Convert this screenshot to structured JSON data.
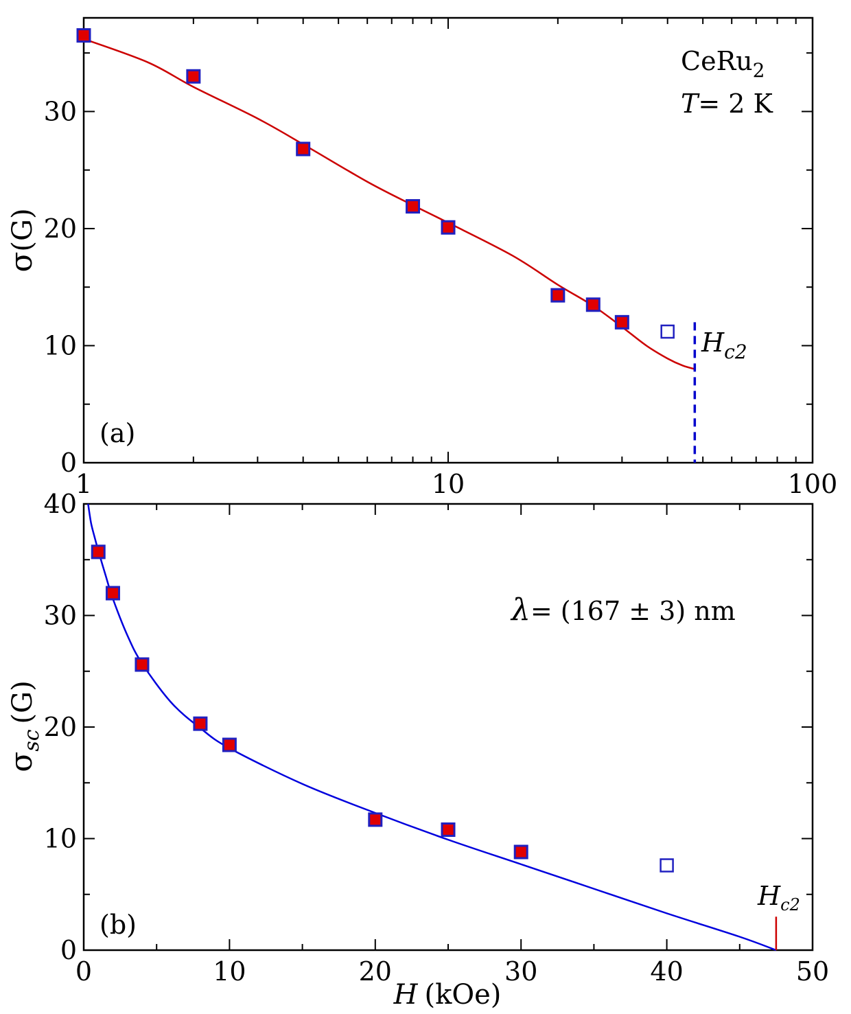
{
  "chart_data": [
    {
      "type": "scatter",
      "panel_label": "(a)",
      "xscale": "log",
      "xlim": [
        1,
        100
      ],
      "ylim": [
        0,
        38
      ],
      "ylabel_symbol": "σ",
      "ylabel_unit": "(G)",
      "x_ticks": [
        1,
        10,
        100
      ],
      "x_tick_labels": [
        "1",
        "10",
        "100"
      ],
      "y_ticks": [
        0,
        10,
        20,
        30
      ],
      "y_tick_labels": [
        "0",
        "10",
        "20",
        "30"
      ],
      "title_compound": "CeRu",
      "title_subscript": "2",
      "temperature_symbol": "T",
      "temperature_text": "= 2 K",
      "hc2_symbol": "H",
      "hc2_subscript": "c2",
      "hc2_x": 47.5,
      "hc2_line_color": "#0000cc",
      "series": [
        {
          "kind": "filled",
          "x": [
            1,
            2,
            4,
            8,
            10,
            20,
            25,
            30
          ],
          "y": [
            36.5,
            33.0,
            26.8,
            21.9,
            20.1,
            14.3,
            13.5,
            12.0
          ],
          "fill": "#e00000",
          "stroke": "#2020c0"
        },
        {
          "kind": "open",
          "x": [
            40
          ],
          "y": [
            11.2
          ],
          "stroke": "#2020c0"
        }
      ],
      "fit_curve": {
        "color": "#cc0000",
        "x": [
          1,
          1.5,
          2,
          3,
          4,
          6,
          8,
          10,
          15,
          20,
          25,
          30,
          35,
          40,
          44,
          47.5
        ],
        "y": [
          36.2,
          34.2,
          32.1,
          29.4,
          27.2,
          24.0,
          22.0,
          20.5,
          17.7,
          15.2,
          13.4,
          11.6,
          10.0,
          8.9,
          8.3,
          8.0
        ]
      }
    },
    {
      "type": "scatter",
      "panel_label": "(b)",
      "xlim": [
        0,
        50
      ],
      "ylim": [
        0,
        40
      ],
      "xlabel_symbol": "H",
      "xlabel_unit": "(kOe)",
      "ylabel_symbol": "σ",
      "ylabel_subscript": "sc",
      "ylabel_unit": "(G)",
      "x_ticks": [
        0,
        10,
        20,
        30,
        40,
        50
      ],
      "x_tick_labels": [
        "0",
        "10",
        "20",
        "30",
        "40",
        "50"
      ],
      "y_ticks": [
        0,
        10,
        20,
        30,
        40
      ],
      "y_tick_labels": [
        "0",
        "10",
        "20",
        "30",
        "40"
      ],
      "lambda_symbol": "λ",
      "lambda_text": "= (167 ± 3) nm",
      "hc2_symbol": "H",
      "hc2_subscript": "c2",
      "hc2_x": 47.5,
      "hc2_line_color": "#cc0000",
      "series": [
        {
          "kind": "filled",
          "x": [
            1,
            2,
            4,
            8,
            10,
            20,
            25,
            30
          ],
          "y": [
            35.7,
            32.0,
            25.6,
            20.3,
            18.4,
            11.7,
            10.8,
            8.8
          ],
          "fill": "#e00000",
          "stroke": "#2020c0"
        },
        {
          "kind": "open",
          "x": [
            40
          ],
          "y": [
            7.6
          ],
          "stroke": "#2020c0"
        }
      ],
      "fit_curve": {
        "color": "#0000dd",
        "x": [
          0.3,
          0.5,
          0.75,
          1,
          1.5,
          2,
          3,
          4,
          6,
          8,
          10,
          15,
          20,
          25,
          30,
          35,
          40,
          45,
          47.5
        ],
        "y": [
          40.0,
          38.3,
          37.0,
          35.8,
          33.6,
          31.5,
          28.2,
          25.7,
          22.2,
          19.9,
          18.1,
          14.9,
          12.3,
          9.9,
          7.7,
          5.5,
          3.3,
          1.2,
          0.0
        ]
      }
    }
  ]
}
